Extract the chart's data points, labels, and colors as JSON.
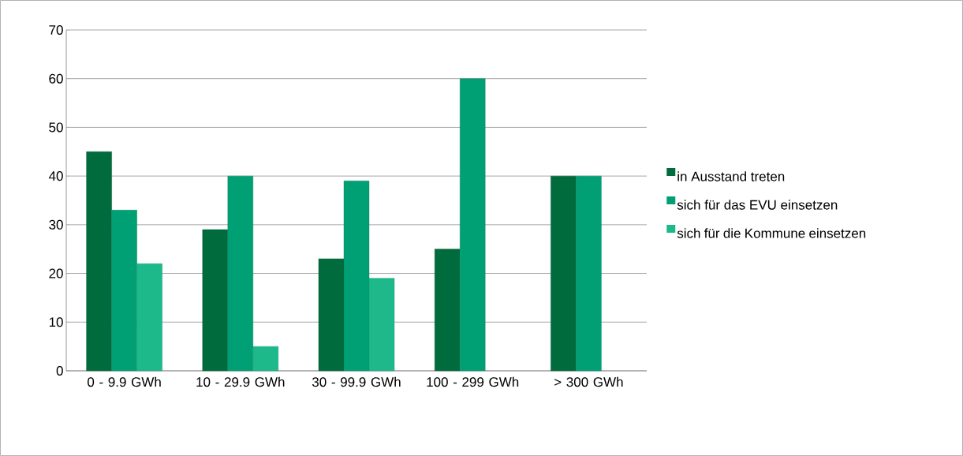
{
  "chart_data": {
    "type": "bar",
    "categories": [
      "0 - 9.9 GWh",
      "10 - 29.9 GWh",
      "30 - 99.9 GWh",
      "100 - 299 GWh",
      "> 300 GWh"
    ],
    "series": [
      {
        "name": "in Ausstand treten",
        "color": "#006b3c",
        "values": [
          45,
          29,
          23,
          25,
          40
        ]
      },
      {
        "name": "sich für das EVU einsetzen",
        "color": "#00a074",
        "values": [
          33,
          40,
          39,
          60,
          40
        ]
      },
      {
        "name": "sich für die Kommune einsetzen",
        "color": "#1db98a",
        "values": [
          22,
          5,
          19,
          null,
          null
        ]
      }
    ],
    "ylim": [
      0,
      70
    ],
    "yticks": [
      0,
      10,
      20,
      30,
      40,
      50,
      60,
      70
    ],
    "grid": "y",
    "legend": "right"
  }
}
